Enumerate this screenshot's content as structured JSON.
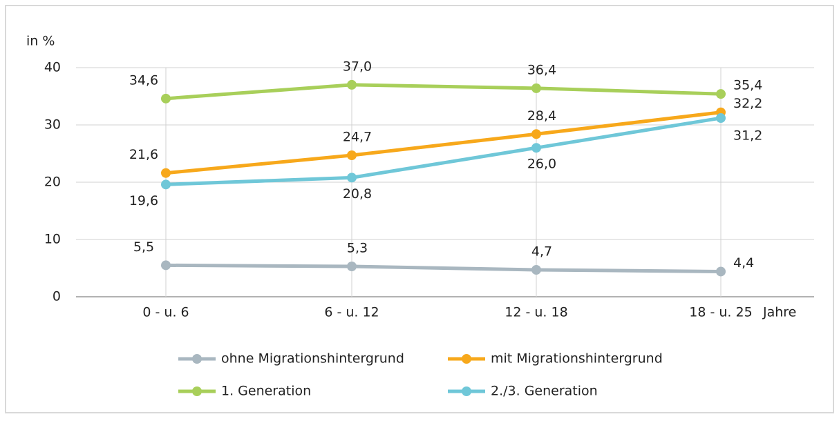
{
  "chart_data": {
    "type": "line",
    "y_label": "in %",
    "x_label": "Jahre",
    "categories": [
      "0 - u. 6",
      "6 - u. 12",
      "12 - u. 18",
      "18 - u. 25"
    ],
    "series": [
      {
        "name": "ohne Migrationshintergrund",
        "color": "#a9b7c0",
        "values": [
          5.5,
          5.3,
          4.7,
          4.4
        ],
        "value_labels": [
          "5,5",
          "5,3",
          "4,7",
          "4,4"
        ]
      },
      {
        "name": "mit Migrationshintergrund",
        "color": "#f7a81b",
        "values": [
          21.6,
          24.7,
          28.4,
          32.2
        ],
        "value_labels": [
          "21,6",
          "24,7",
          "28,4",
          "32,2"
        ]
      },
      {
        "name": "1. Generation",
        "color": "#a8cf5a",
        "values": [
          34.6,
          37.0,
          36.4,
          35.4
        ],
        "value_labels": [
          "34,6",
          "37,0",
          "36,4",
          "35,4"
        ]
      },
      {
        "name": "2./3. Generation",
        "color": "#6fc7d8",
        "values": [
          19.6,
          20.8,
          26.0,
          31.2
        ],
        "value_labels": [
          "19,6",
          "20,8",
          "26,0",
          "31,2"
        ]
      }
    ],
    "ylim": [
      0,
      40
    ],
    "yticks": [
      0,
      10,
      20,
      30,
      40
    ],
    "grid": true
  }
}
